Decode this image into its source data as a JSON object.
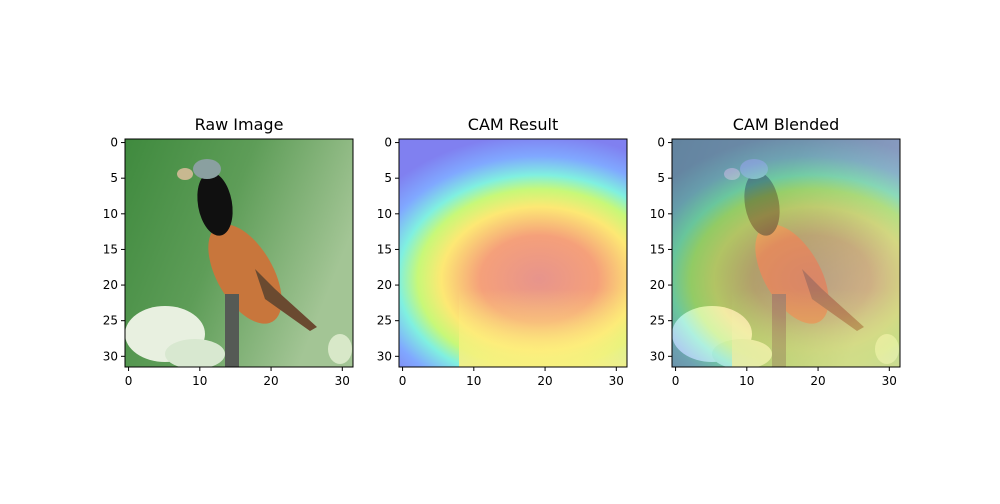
{
  "chart_data": [
    {
      "type": "image",
      "title": "Raw Image",
      "xlim": [
        -0.5,
        31.5
      ],
      "ylim": [
        31.5,
        -0.5
      ],
      "xticks": [
        0,
        10,
        20,
        30
      ],
      "yticks": [
        0,
        5,
        10,
        15,
        20,
        25,
        30
      ]
    },
    {
      "type": "image",
      "title": "CAM Result",
      "xlim": [
        -0.5,
        31.5
      ],
      "ylim": [
        31.5,
        -0.5
      ],
      "xticks": [
        0,
        10,
        20,
        30
      ],
      "yticks": [
        0,
        5,
        10,
        15,
        20,
        25,
        30
      ]
    },
    {
      "type": "image",
      "title": "CAM Blended",
      "xlim": [
        -0.5,
        31.5
      ],
      "ylim": [
        31.5,
        -0.5
      ],
      "xticks": [
        0,
        10,
        20,
        30
      ],
      "yticks": [
        0,
        5,
        10,
        15,
        20,
        25,
        30
      ]
    }
  ]
}
